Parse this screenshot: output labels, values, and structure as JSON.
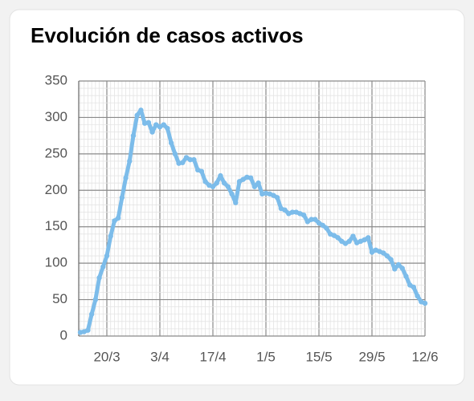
{
  "chart_data": {
    "type": "line",
    "title": "Evolución de casos activos",
    "categories": [
      null,
      null,
      null,
      null,
      null,
      null,
      null,
      "20/3",
      null,
      null,
      null,
      null,
      null,
      null,
      null,
      null,
      null,
      null,
      null,
      null,
      null,
      "3/4",
      null,
      null,
      null,
      null,
      null,
      null,
      null,
      null,
      null,
      null,
      null,
      null,
      null,
      "17/4",
      null,
      null,
      null,
      null,
      null,
      null,
      null,
      null,
      null,
      null,
      null,
      null,
      null,
      "1/5",
      null,
      null,
      null,
      null,
      null,
      null,
      null,
      null,
      null,
      null,
      null,
      null,
      null,
      "15/5",
      null,
      null,
      null,
      null,
      null,
      null,
      null,
      null,
      null,
      null,
      null,
      null,
      null,
      "29/5",
      null,
      null,
      null,
      null,
      null,
      null,
      null,
      null,
      null,
      null,
      null,
      null,
      null,
      "12/6"
    ],
    "series": [
      {
        "name": "Casos activos",
        "color": "#7cbcea",
        "values": [
          5,
          6,
          8,
          30,
          50,
          80,
          95,
          110,
          137,
          158,
          162,
          190,
          217,
          240,
          275,
          303,
          310,
          292,
          293,
          280,
          290,
          287,
          290,
          285,
          265,
          250,
          237,
          238,
          245,
          242,
          242,
          228,
          226,
          212,
          207,
          205,
          210,
          220,
          210,
          205,
          195,
          183,
          212,
          215,
          218,
          217,
          205,
          210,
          195,
          196,
          195,
          193,
          190,
          175,
          173,
          168,
          170,
          170,
          168,
          166,
          157,
          160,
          160,
          155,
          152,
          148,
          140,
          138,
          135,
          130,
          127,
          130,
          137,
          128,
          130,
          132,
          135,
          115,
          118,
          116,
          114,
          110,
          105,
          92,
          98,
          93,
          82,
          70,
          67,
          55,
          47,
          45
        ]
      }
    ],
    "ylim": [
      0,
      350
    ],
    "yticks": [
      0,
      50,
      100,
      150,
      200,
      250,
      300,
      350
    ],
    "grid": true
  }
}
